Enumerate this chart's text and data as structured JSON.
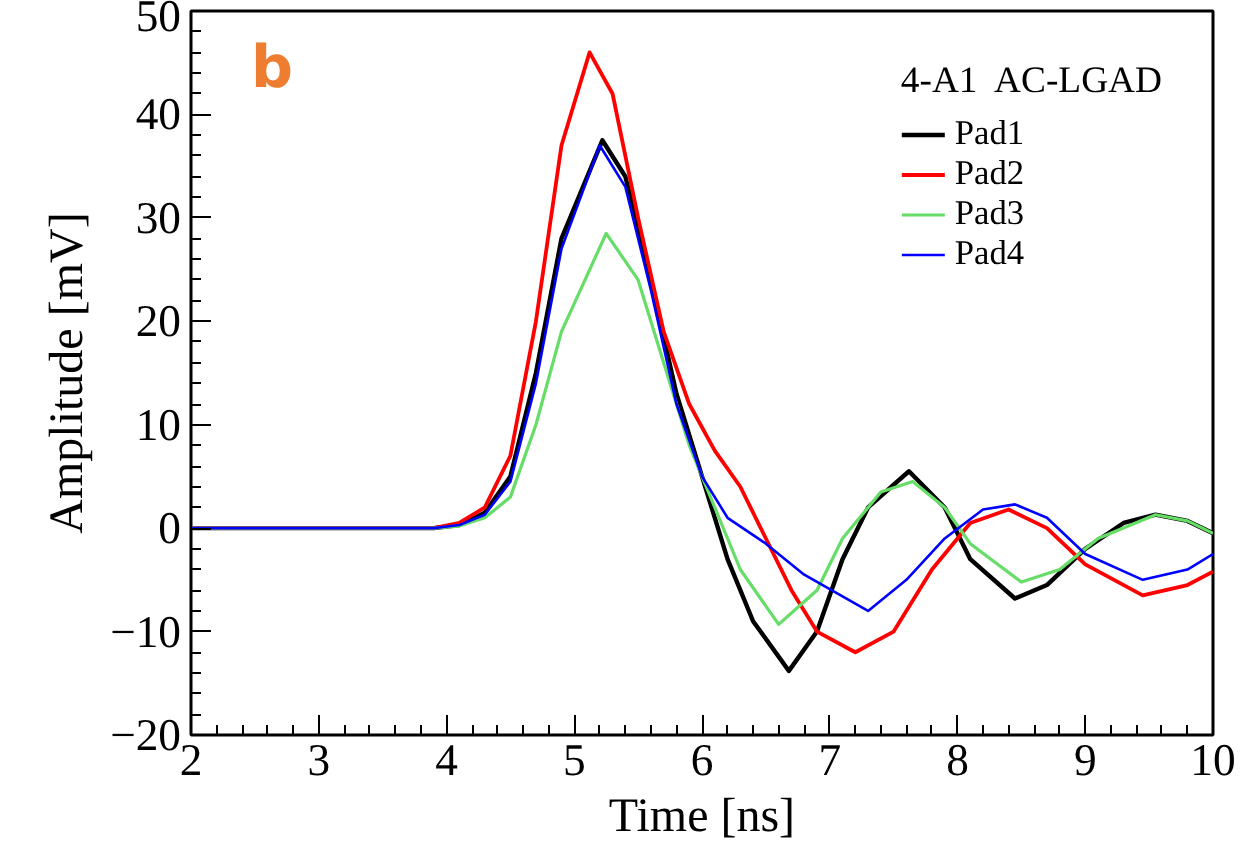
{
  "chart_data": {
    "type": "line",
    "xlabel": "Time [ns]",
    "ylabel": "Amplitude [mV]",
    "legend_title": "4-A1  AC-LGAD",
    "legend": "top right",
    "grid": false,
    "marker": "none",
    "line_style": "solid",
    "annotations": [
      "b"
    ],
    "xlim": [
      2,
      10
    ],
    "xticks": [
      2,
      3,
      4,
      5,
      6,
      7,
      8,
      9,
      10
    ],
    "ylim": [
      -20,
      50
    ],
    "yticks": [
      -20,
      -10,
      0,
      10,
      20,
      30,
      40,
      50
    ],
    "series": [
      {
        "name": "Pad1",
        "color": "#000000",
        "x": [
          2,
          3.9,
          4.1,
          4.3,
          4.5,
          4.7,
          4.9,
          5.22,
          5.4,
          5.6,
          5.8,
          6.0,
          6.2,
          6.4,
          6.68,
          6.9,
          7.1,
          7.3,
          7.62,
          7.9,
          8.1,
          8.45,
          8.7,
          9.0,
          9.3,
          9.55,
          9.8,
          10
        ],
        "values": [
          0,
          0,
          0.3,
          1.5,
          5,
          15,
          28,
          37.5,
          34,
          24,
          13,
          5,
          -3,
          -9,
          -13.8,
          -10,
          -3,
          2,
          5.5,
          2,
          -3,
          -6.8,
          -5.5,
          -2,
          0.5,
          1.3,
          0.7,
          -0.5
        ]
      },
      {
        "name": "Pad2",
        "color": "#ff0000",
        "x": [
          2,
          3.9,
          4.1,
          4.3,
          4.5,
          4.7,
          4.9,
          5.12,
          5.3,
          5.5,
          5.7,
          5.9,
          6.1,
          6.3,
          6.5,
          6.7,
          6.9,
          7.2,
          7.5,
          7.8,
          8.1,
          8.4,
          8.7,
          9.0,
          9.45,
          9.8,
          10
        ],
        "values": [
          0,
          0,
          0.5,
          2,
          7,
          20,
          37,
          46,
          42,
          30,
          19,
          12,
          7.5,
          4,
          -1,
          -6,
          -10,
          -12,
          -10,
          -4,
          0.5,
          1.8,
          0,
          -3.5,
          -6.5,
          -5.5,
          -4.2
        ]
      },
      {
        "name": "Pad3",
        "color": "#66dd66",
        "x": [
          2,
          3.9,
          4.1,
          4.3,
          4.5,
          4.7,
          4.9,
          5.25,
          5.5,
          5.7,
          5.9,
          6.1,
          6.3,
          6.6,
          6.9,
          7.1,
          7.4,
          7.65,
          7.9,
          8.1,
          8.5,
          8.8,
          9.1,
          9.55,
          9.8,
          10
        ],
        "values": [
          0,
          0,
          0.2,
          1,
          3,
          10,
          19,
          28.5,
          24,
          16,
          8,
          2,
          -4,
          -9.3,
          -6,
          -1,
          3.5,
          4.5,
          2,
          -1.5,
          -5.2,
          -4,
          -1,
          1.3,
          0.7,
          -0.5
        ]
      },
      {
        "name": "Pad4",
        "color": "#0000ff",
        "x": [
          2,
          3.9,
          4.1,
          4.3,
          4.5,
          4.7,
          4.9,
          5.2,
          5.4,
          5.6,
          5.8,
          6.0,
          6.2,
          6.5,
          6.8,
          7.3,
          7.6,
          7.9,
          8.2,
          8.45,
          8.7,
          9.0,
          9.45,
          9.8,
          10
        ],
        "values": [
          0,
          0,
          0.3,
          1.3,
          4.5,
          14,
          27,
          37,
          33,
          23,
          12,
          5,
          1,
          -1.5,
          -4.5,
          -8,
          -5,
          -1,
          1.8,
          2.3,
          1,
          -2.5,
          -5,
          -4,
          -2.5
        ]
      }
    ]
  }
}
